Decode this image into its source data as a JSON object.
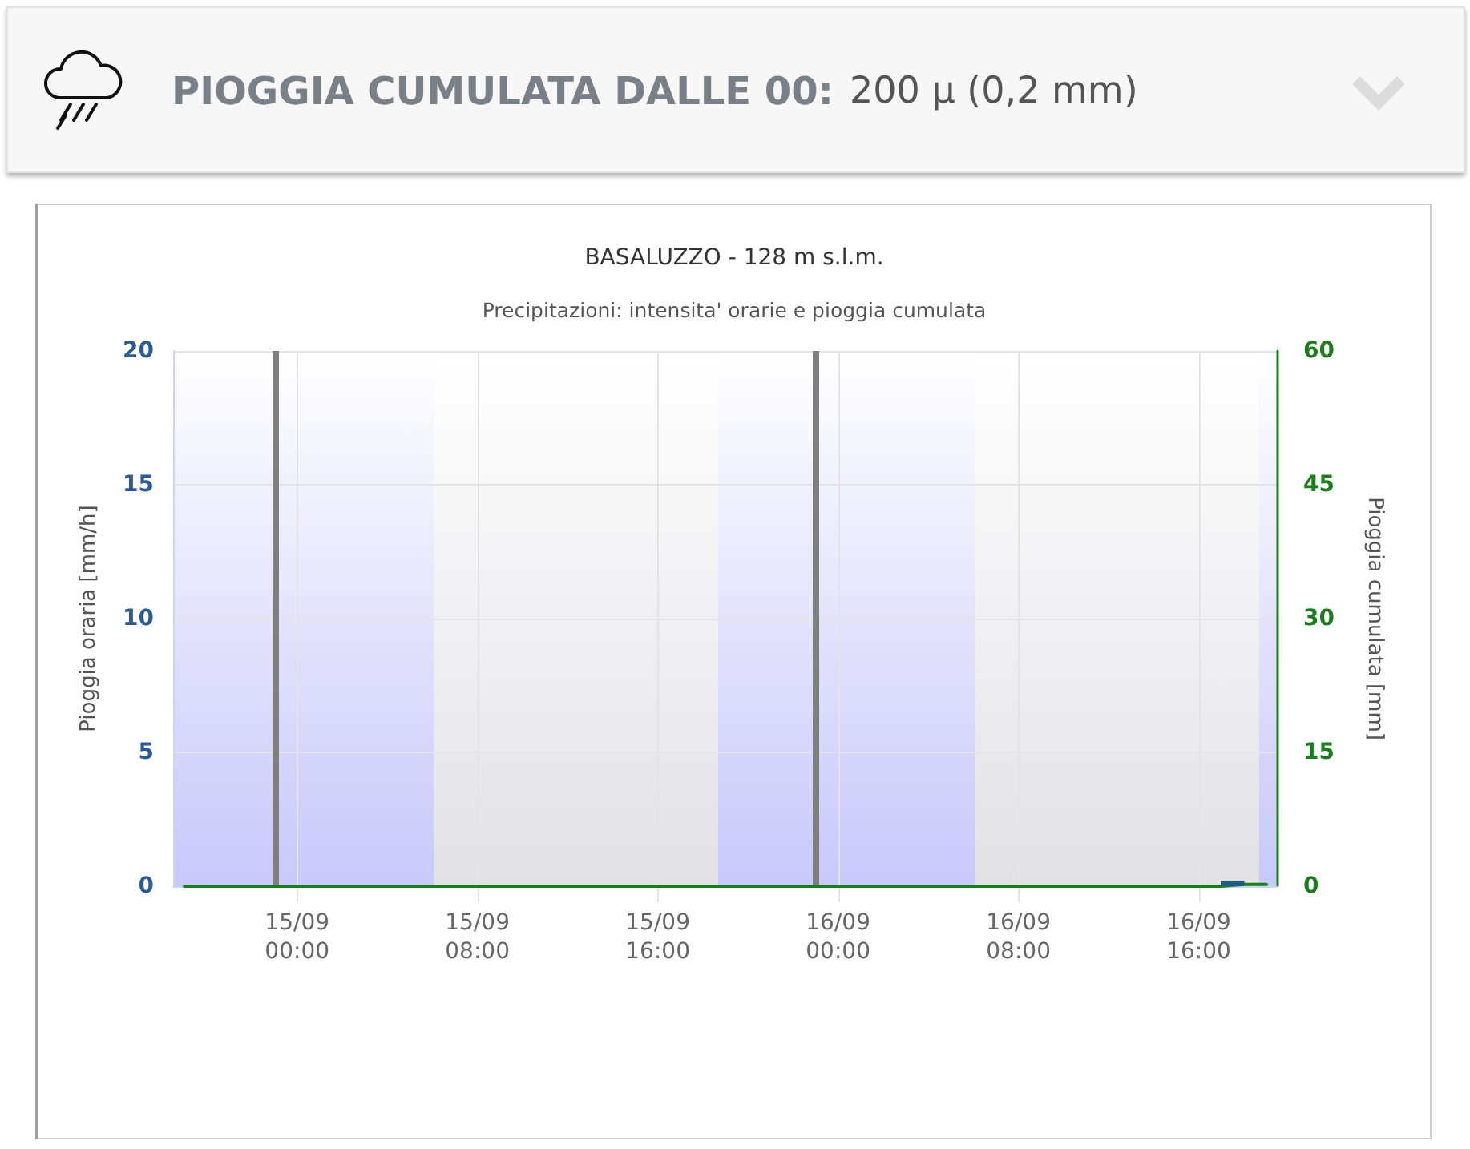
{
  "chart_data": {
    "type": "bar",
    "title": "BASALUZZO - 128 m s.l.m.",
    "subtitle": "Precipitazioni: intensita' orarie e pioggia cumulata",
    "ylabel": "Pioggia oraria [mm/h]",
    "y2label": "Pioggia cumulata [mm]",
    "annotations": [
      "PIOGGIA CUMULATA DALLE 00:",
      "200 µ (0,2 mm)"
    ],
    "series": [
      {
        "color": "#215e7a",
        "x": [
          "--09-16T17:30"
        ],
        "values": [
          0.2
        ]
      },
      {
        "type": "line",
        "axis": "y2",
        "color": "#1a7f1a",
        "x": [
          "--09-14T19:00",
          "--09-16T17:00",
          "--09-16T18:00",
          "--09-16T19:00"
        ],
        "values": [
          0,
          0,
          0.2,
          0.2
        ]
      }
    ],
    "xlim": [
      "--09-14T18:30",
      "--09-16T19:30"
    ],
    "xticks": [
      {
        "value": "--09-15T00:00",
        "label": "15/09\n00:00"
      },
      {
        "value": "--09-15T08:00",
        "label": "15/09\n08:00"
      },
      {
        "value": "--09-15T16:00",
        "label": "15/09\n16:00"
      },
      {
        "value": "--09-16T00:00",
        "label": "16/09\n00:00"
      },
      {
        "value": "--09-16T08:00",
        "label": "16/09\n08:00"
      },
      {
        "value": "--09-16T16:00",
        "label": "16/09\n16:00"
      }
    ],
    "ylim": [
      0,
      20
    ],
    "yticks": [
      0,
      5,
      10,
      15,
      20
    ],
    "y2lim": [
      0,
      60
    ],
    "y2ticks": [
      0,
      15,
      30,
      45,
      60
    ],
    "ref_lines": [
      {
        "axis": "x",
        "value": "--09-14T23:00",
        "color": "#7f7f7f"
      },
      {
        "axis": "x",
        "value": "--09-15T23:00",
        "color": "#7f7f7f"
      }
    ],
    "bands": [
      {
        "axis": "x",
        "from": "--09-14T18:30",
        "to": "--09-15T06:05",
        "color": "#c8c8fa"
      },
      {
        "axis": "x",
        "from": "--09-15T06:05",
        "to": "--09-15T18:40",
        "color": "#e2e2e6"
      },
      {
        "axis": "x",
        "from": "--09-15T18:40",
        "to": "--09-16T06:05",
        "color": "#c8c8fa"
      },
      {
        "axis": "x",
        "from": "--09-16T06:05",
        "to": "--09-16T18:40",
        "color": "#e2e2e6"
      },
      {
        "axis": "x",
        "from": "--09-16T18:40",
        "to": "--09-16T19:30",
        "color": "#c8c8fa"
      }
    ],
    "grid": true,
    "marker": "none",
    "line_style": "solid"
  }
}
